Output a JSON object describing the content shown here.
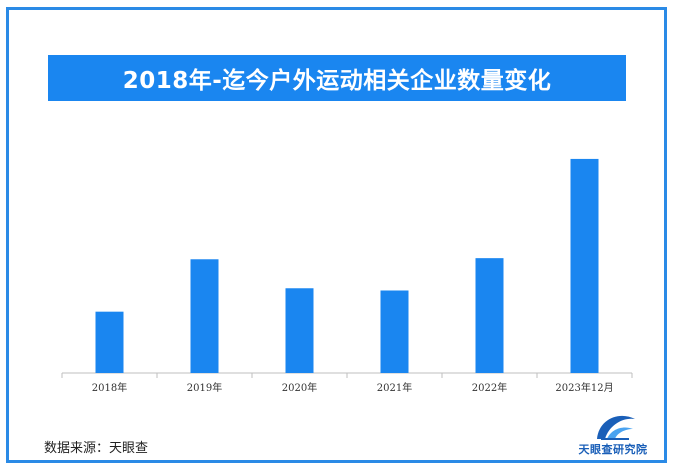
{
  "header": {
    "title": "2018年-迄今户外运动相关企业数量变化"
  },
  "footer": {
    "source": "数据来源：天眼查"
  },
  "brand": {
    "name": "天眼查研究院",
    "logo_icon": "tianyancha-eye-logo-icon"
  },
  "colors": {
    "bar": "#1a86f0",
    "frame": "#2a8ae6",
    "title_bg": "#1a86f0"
  },
  "chart_data": {
    "type": "bar",
    "title": "2018年-迄今户外运动相关企业数量变化",
    "xlabel": "",
    "ylabel": "",
    "categories": [
      "2018年",
      "2019年",
      "2020年",
      "2021年",
      "2022年",
      "2023年12月"
    ],
    "values": [
      55,
      102,
      76,
      74,
      103,
      192
    ],
    "ylim": [
      0,
      200
    ],
    "grid": false,
    "legend": "none"
  }
}
